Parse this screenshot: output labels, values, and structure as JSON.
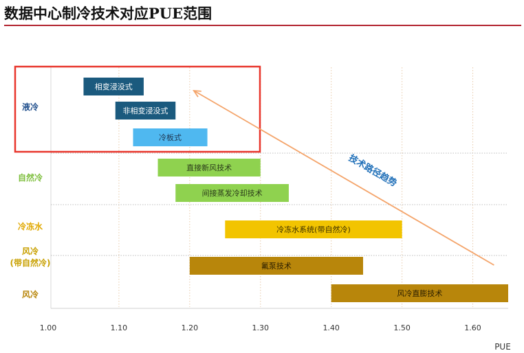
{
  "page_title": "数据中心制冷技术对应PUE范围",
  "chart_data": {
    "type": "bar",
    "orientation": "horizontal-range",
    "title": "数据中心制冷技术对应PUE范围",
    "xlabel": "PUE",
    "ylabel": "",
    "xlim": [
      1.0,
      1.65
    ],
    "x_ticks": [
      1.0,
      1.1,
      1.2,
      1.3,
      1.4,
      1.5,
      1.6
    ],
    "x_tick_labels": [
      "1.00",
      "1.10",
      "1.20",
      "1.30",
      "1.40",
      "1.50",
      "1.60"
    ],
    "grid": "dotted vertical lines at ticks; dotted horizontal separators between groups",
    "highlight": {
      "label": "",
      "group": "液冷",
      "color": "#e8352b"
    },
    "trend_arrow": {
      "label": "技术路径趋势",
      "from": [
        1.63,
        "风冷"
      ],
      "to": [
        1.2,
        "液冷"
      ],
      "color": "#f4a46a",
      "label_color": "#1f6fb8"
    },
    "groups": [
      {
        "name": "液冷",
        "color": "#1f4e8c",
        "bars": [
          {
            "label": "相变浸没式",
            "start": 1.05,
            "end": 1.135,
            "color": "#1b5a7e",
            "text_color": "#ffffff"
          },
          {
            "label": "非相变浸没式",
            "start": 1.095,
            "end": 1.18,
            "color": "#1b5a7e",
            "text_color": "#ffffff"
          },
          {
            "label": "冷板式",
            "start": 1.12,
            "end": 1.225,
            "color": "#4fb8f0",
            "text_color": "#1f3550"
          }
        ]
      },
      {
        "name": "自然冷",
        "color": "#7fbf3f",
        "bars": [
          {
            "label": "直接新风技术",
            "start": 1.155,
            "end": 1.3,
            "color": "#8fd24f",
            "text_color": "#2a3a1a"
          },
          {
            "label": "间接蒸发冷却技术",
            "start": 1.18,
            "end": 1.34,
            "color": "#8fd24f",
            "text_color": "#2a3a1a"
          }
        ]
      },
      {
        "name": "冷冻水",
        "color": "#e0a800",
        "bars": [
          {
            "label": "冷冻水系统(带自然冷)",
            "start": 1.25,
            "end": 1.5,
            "color": "#f2c400",
            "text_color": "#3a2e00"
          }
        ]
      },
      {
        "name": "风冷\n(带自然冷)",
        "color": "#c8a000",
        "bars": [
          {
            "label": "氟泵技术",
            "start": 1.2,
            "end": 1.445,
            "color": "#b8860b",
            "text_color": "#2a1e00"
          }
        ]
      },
      {
        "name": "风冷",
        "color": "#b8860b",
        "bars": [
          {
            "label": "风冷直膨技术",
            "start": 1.4,
            "end": 1.65,
            "color": "#b8860b",
            "text_color": "#2a1e00"
          }
        ]
      }
    ]
  }
}
